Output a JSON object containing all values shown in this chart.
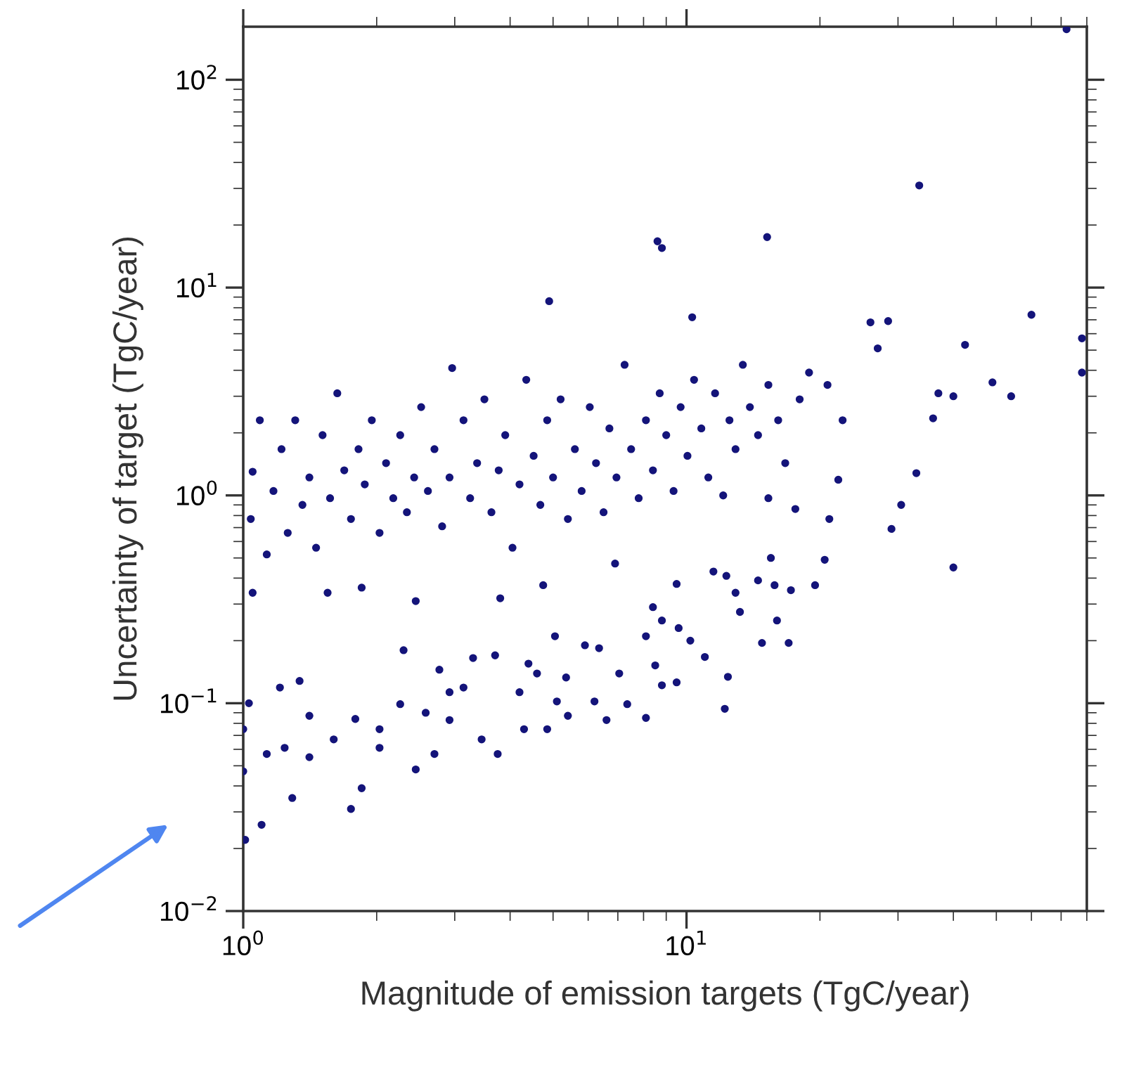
{
  "chart_data": {
    "type": "scatter",
    "xlabel": "Magnitude of emission targets (TgC/year)",
    "ylabel": "Uncertainty of target (TgC/year)",
    "log": "xy",
    "xlim": [
      1,
      80
    ],
    "ylim": [
      0.01,
      180
    ],
    "xticks": [
      {
        "value": 1,
        "label": "10$^{0}$"
      },
      {
        "value": 10,
        "label": "10$^{1}$"
      }
    ],
    "yticks": [
      {
        "value": 0.01,
        "label": "10$^{−2}$"
      },
      {
        "value": 0.1,
        "label": "10$^{−1}$"
      },
      {
        "value": 1,
        "label": "10$^{0}$"
      },
      {
        "value": 10,
        "label": "10$^{1}$"
      },
      {
        "value": 100,
        "label": "10$^{2}$"
      }
    ],
    "grid": false,
    "marker": "circle",
    "series": [
      {
        "color": "#14147a",
        "x": [
          72,
          33.5,
          15.2,
          8.6,
          8.8,
          60,
          10.3,
          4.9,
          78,
          78,
          26,
          28.5,
          27,
          42.5,
          49,
          54,
          40,
          36,
          37,
          33,
          30.5,
          29,
          40,
          22,
          21,
          20.5,
          19.5,
          17.2,
          15.5,
          15.8,
          14.5,
          13.2,
          12.9,
          12.3,
          11.5,
          16,
          14.8,
          17,
          12.4,
          12.2,
          11,
          9.5,
          9.5,
          10.2,
          9.6,
          15.3,
          12.1,
          17.6,
          8.4,
          8.8,
          8.1,
          6.9,
          4.75,
          3.8,
          2.45,
          1.55,
          1.05,
          1.85,
          2.3,
          1.75,
          1.1,
          1.01,
          1.85,
          1.29,
          2.45,
          3.75,
          2.7,
          4.85,
          4.3,
          5.4,
          6.6,
          8.1,
          7.35,
          8.8,
          8.5,
          6.35,
          5.05,
          5.9,
          3.7,
          3.3,
          2.77,
          1.34,
          1.21,
          1.03,
          1.0,
          1.0,
          1.13,
          1.24,
          1.41,
          1.6,
          1.79,
          2.03,
          2.26,
          2.58,
          2.92,
          3.14,
          4.2,
          4.6,
          5.35,
          6.2,
          7.05,
          1.41,
          2.03,
          2.92,
          3.45,
          5.1,
          4.4,
          1.05,
          1.04,
          1.09,
          1.13,
          1.17,
          1.22,
          1.26,
          1.31,
          1.36,
          1.41,
          1.46,
          1.51,
          1.57,
          1.63,
          1.69,
          1.75,
          1.82,
          1.88,
          1.95,
          2.03,
          2.1,
          2.18,
          2.26,
          2.34,
          2.43,
          2.52,
          2.61,
          2.7,
          2.81,
          2.92,
          2.96,
          3.14,
          3.25,
          3.37,
          3.5,
          3.63,
          3.77,
          3.9,
          4.05,
          4.2,
          4.35,
          4.52,
          4.68,
          4.85,
          5.0,
          5.2,
          5.4,
          5.6,
          5.8,
          6.05,
          6.25,
          6.5,
          6.7,
          6.95,
          7.25,
          7.5,
          7.8,
          8.1,
          8.4,
          8.7,
          9.0,
          9.35,
          9.7,
          10.05,
          10.4,
          10.8,
          11.2,
          11.6,
          12.5,
          12.9,
          13.4,
          13.9,
          14.5,
          15.3,
          16.1,
          16.7,
          18.0,
          18.9,
          20.8,
          22.5
        ],
        "values": [
          175,
          31,
          17.5,
          16.7,
          15.5,
          7.4,
          7.2,
          8.6,
          5.7,
          3.9,
          6.8,
          6.9,
          5.1,
          5.3,
          3.5,
          3.0,
          3.0,
          2.35,
          3.1,
          1.28,
          0.9,
          0.69,
          0.45,
          1.19,
          0.77,
          0.49,
          0.37,
          0.35,
          0.5,
          0.37,
          0.39,
          0.275,
          0.34,
          0.41,
          0.43,
          0.25,
          0.195,
          0.195,
          0.134,
          0.094,
          0.167,
          0.375,
          0.126,
          0.2,
          0.23,
          0.97,
          1.0,
          0.86,
          0.29,
          0.25,
          0.21,
          0.47,
          0.37,
          0.32,
          0.31,
          0.34,
          0.34,
          0.36,
          0.18,
          0.031,
          0.026,
          0.022,
          0.039,
          0.035,
          0.048,
          0.057,
          0.057,
          0.075,
          0.075,
          0.087,
          0.083,
          0.085,
          0.099,
          0.122,
          0.152,
          0.184,
          0.21,
          0.19,
          0.17,
          0.165,
          0.145,
          0.128,
          0.119,
          0.1,
          0.075,
          0.047,
          0.057,
          0.061,
          0.087,
          0.067,
          0.084,
          0.075,
          0.099,
          0.09,
          0.113,
          0.119,
          0.113,
          0.139,
          0.133,
          0.102,
          0.139,
          0.055,
          0.061,
          0.083,
          0.067,
          0.102,
          0.155,
          1.3,
          0.77,
          2.3,
          0.52,
          1.05,
          1.67,
          0.66,
          2.3,
          0.9,
          1.22,
          0.56,
          1.95,
          0.97,
          3.1,
          1.32,
          0.77,
          1.67,
          1.13,
          2.3,
          0.66,
          1.43,
          0.97,
          1.95,
          0.83,
          1.22,
          2.66,
          1.05,
          1.67,
          0.71,
          1.22,
          4.1,
          2.3,
          0.97,
          1.43,
          2.9,
          0.83,
          1.32,
          1.95,
          0.56,
          1.13,
          3.6,
          1.55,
          0.9,
          2.3,
          1.22,
          2.9,
          0.77,
          1.67,
          1.05,
          2.66,
          1.43,
          0.83,
          2.1,
          1.22,
          4.25,
          1.67,
          0.97,
          2.3,
          1.32,
          3.1,
          1.95,
          1.05,
          2.66,
          1.55,
          3.6,
          2.1,
          1.22,
          3.1,
          2.3,
          1.67,
          4.25,
          2.66,
          1.95,
          3.4,
          2.3,
          1.43,
          2.9,
          3.9,
          3.4,
          2.3
        ]
      }
    ]
  }
}
